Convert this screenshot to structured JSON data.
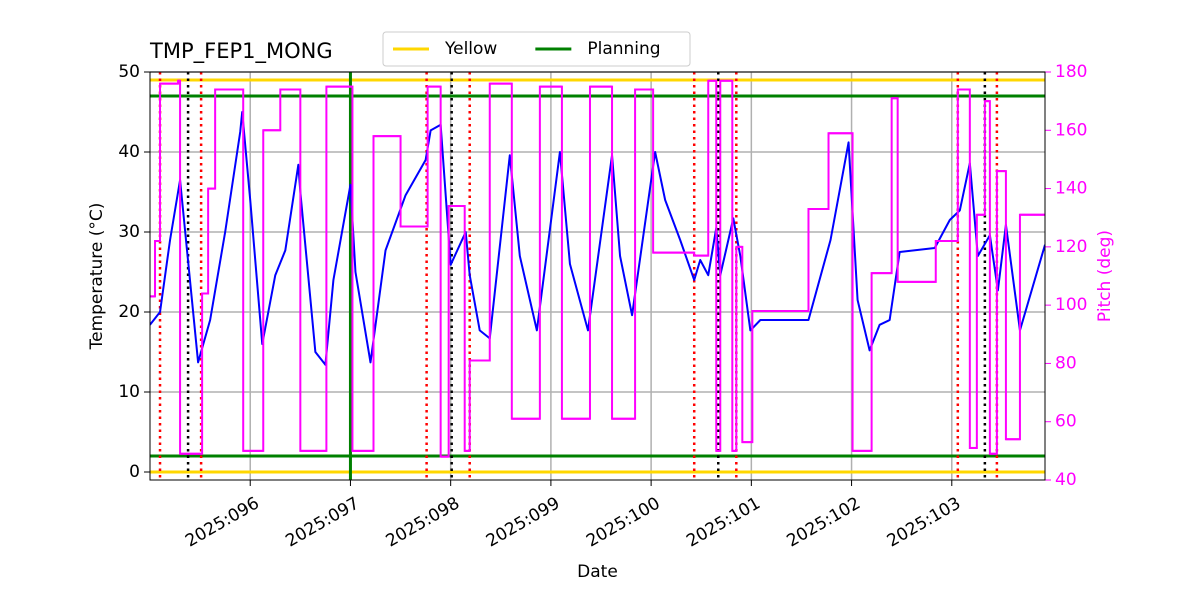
{
  "chart_data": {
    "type": "line",
    "title": "TMP_FEP1_MONG",
    "xlabel": "Date",
    "ylabel": "Temperature (°C)",
    "y2label": "Pitch (deg)",
    "y2color": "#ff00ff",
    "xlim": [
      95.0,
      103.93
    ],
    "ylim": [
      -1,
      50
    ],
    "y2lim": [
      40,
      180
    ],
    "xticks": [
      {
        "value": 96,
        "label": "2025:096"
      },
      {
        "value": 97,
        "label": "2025:097"
      },
      {
        "value": 98,
        "label": "2025:098"
      },
      {
        "value": 99,
        "label": "2025:099"
      },
      {
        "value": 100,
        "label": "2025:100"
      },
      {
        "value": 101,
        "label": "2025:101"
      },
      {
        "value": 102,
        "label": "2025:102"
      },
      {
        "value": 103,
        "label": "2025:103"
      }
    ],
    "yticks": [
      0,
      10,
      20,
      30,
      40,
      50
    ],
    "y2ticks": [
      40,
      60,
      80,
      100,
      120,
      140,
      160,
      180
    ],
    "grid": true,
    "legend": "upper center",
    "hlines": [
      {
        "name": "Yellow",
        "color": "#ffd700",
        "values": [
          0,
          49
        ]
      },
      {
        "name": "Planning",
        "color": "#008000",
        "values": [
          2,
          47
        ]
      }
    ],
    "vlines": [
      {
        "x": 95.1,
        "color": "#ff0000",
        "style": "dotted"
      },
      {
        "x": 95.51,
        "color": "#ff0000",
        "style": "dotted"
      },
      {
        "x": 97.76,
        "color": "#ff0000",
        "style": "dotted"
      },
      {
        "x": 98.19,
        "color": "#ff0000",
        "style": "dotted"
      },
      {
        "x": 100.43,
        "color": "#ff0000",
        "style": "dotted"
      },
      {
        "x": 100.85,
        "color": "#ff0000",
        "style": "dotted"
      },
      {
        "x": 103.06,
        "color": "#ff0000",
        "style": "dotted"
      },
      {
        "x": 103.45,
        "color": "#ff0000",
        "style": "dotted"
      },
      {
        "x": 95.38,
        "color": "#000000",
        "style": "dotted"
      },
      {
        "x": 98.01,
        "color": "#000000",
        "style": "dotted"
      },
      {
        "x": 100.67,
        "color": "#000000",
        "style": "dotted"
      },
      {
        "x": 103.33,
        "color": "#000000",
        "style": "dotted"
      },
      {
        "x": 97.0,
        "color": "#008000",
        "style": "solid"
      }
    ],
    "series": [
      {
        "color": "#0000ff",
        "axis": "y",
        "drawstyle": "default",
        "x": [
          95.0,
          95.1,
          95.2,
          95.3,
          95.48,
          95.6,
          95.75,
          95.9,
          95.92,
          96.0,
          96.12,
          96.25,
          96.35,
          96.48,
          96.5,
          96.65,
          96.75,
          96.83,
          97.0,
          97.05,
          97.2,
          97.35,
          97.55,
          97.75,
          97.8,
          97.9,
          98.0,
          98.15,
          98.19,
          98.29,
          98.39,
          98.59,
          98.69,
          98.86,
          99.09,
          99.19,
          99.37,
          99.61,
          99.69,
          99.81,
          100.04,
          100.14,
          100.29,
          100.43,
          100.49,
          100.57,
          100.65,
          100.69,
          100.82,
          100.89,
          100.99,
          101.09,
          101.57,
          101.79,
          101.97,
          102.06,
          102.18,
          102.28,
          102.38,
          102.48,
          102.83,
          102.98,
          103.08,
          103.18,
          103.26,
          103.38,
          103.46,
          103.54,
          103.68,
          103.93
        ],
        "values": [
          18.4,
          20,
          29,
          36.5,
          13.7,
          19,
          30,
          42.5,
          45,
          34,
          16,
          24.6,
          27.7,
          38.4,
          35,
          15,
          13.4,
          24,
          35.9,
          25,
          13.7,
          27.7,
          34.6,
          39,
          42.7,
          43.4,
          25.9,
          30,
          24.6,
          17.7,
          16.7,
          39.6,
          27,
          17.7,
          40,
          26,
          17.7,
          39.6,
          27,
          19.6,
          40,
          34,
          29,
          24,
          26.5,
          24.6,
          30.5,
          24.6,
          31.7,
          27,
          17.7,
          19,
          19,
          29,
          41.2,
          21.5,
          15.2,
          18.4,
          19,
          27.5,
          28,
          31.5,
          32.7,
          38.6,
          27,
          29.6,
          22.7,
          30.9,
          17.7,
          28.4
        ]
      },
      {
        "color": "#ff00ff",
        "axis": "y2",
        "drawstyle": "steps-post",
        "x": [
          95.0,
          95.05,
          95.1,
          95.28,
          95.3,
          95.45,
          95.52,
          95.58,
          95.65,
          95.93,
          96.13,
          96.3,
          96.5,
          96.76,
          97.02,
          97.23,
          97.5,
          97.77,
          97.9,
          97.98,
          98.14,
          98.19,
          98.39,
          98.61,
          98.89,
          99.11,
          99.39,
          99.61,
          99.84,
          100.02,
          100.43,
          100.57,
          100.65,
          100.69,
          100.81,
          100.85,
          100.91,
          101.01,
          101.57,
          101.77,
          102.01,
          102.2,
          102.4,
          102.46,
          102.84,
          103.06,
          103.18,
          103.25,
          103.33,
          103.38,
          103.45,
          103.54,
          103.68,
          103.93
        ],
        "values": [
          103,
          122,
          176,
          177,
          49,
          49,
          104,
          140,
          174,
          50,
          160,
          174,
          50,
          175,
          50,
          158,
          127,
          175,
          48,
          134,
          50,
          81,
          176,
          61,
          175,
          61,
          175,
          61,
          174,
          118,
          117,
          177,
          50,
          177,
          50,
          120,
          53,
          98,
          133,
          159,
          50,
          111,
          171,
          108,
          122,
          174,
          51,
          131,
          170,
          49,
          146,
          54,
          131,
          131
        ]
      }
    ]
  }
}
